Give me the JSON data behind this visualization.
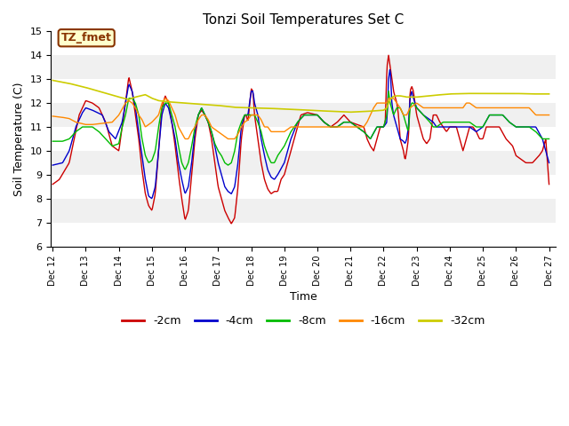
{
  "title": "Tonzi Soil Temperatures Set C",
  "xlabel": "Time",
  "ylabel": "Soil Temperature (C)",
  "ylim": [
    6.0,
    15.0
  ],
  "yticks": [
    6.0,
    7.0,
    8.0,
    9.0,
    10.0,
    11.0,
    12.0,
    13.0,
    14.0,
    15.0
  ],
  "xlim_days": [
    12,
    27
  ],
  "colors": {
    "-2cm": "#cc0000",
    "-4cm": "#0000cc",
    "-8cm": "#00bb00",
    "-16cm": "#ff8800",
    "-32cm": "#cccc00"
  },
  "xtick_labels": [
    "Dec 12",
    "Dec 13",
    "Dec 14",
    "Dec 15",
    "Dec 16",
    "Dec 17",
    "Dec 18",
    "Dec 19",
    "Dec 20",
    "Dec 21",
    "Dec 22",
    "Dec 23",
    "Dec 24",
    "Dec 25",
    "Dec 26",
    "Dec 27"
  ],
  "annotation_text": "TZ_fmet",
  "annotation_bg": "#ffffcc",
  "annotation_border": "#883300",
  "bg_light": "#f0f0f0",
  "bg_white": "#ffffff",
  "legend_entries": [
    "-2cm",
    "-4cm",
    "-8cm",
    "-16cm",
    "-32cm"
  ]
}
